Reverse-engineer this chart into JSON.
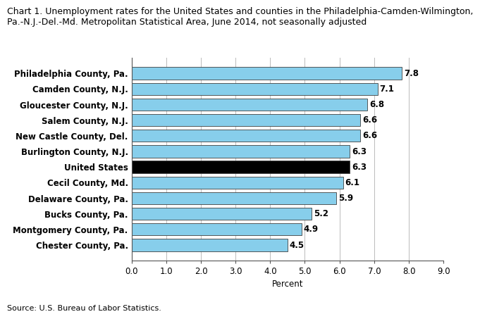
{
  "title_line1": "Chart 1. Unemployment rates for the United States and counties in the Philadelphia-Camden-Wilmington,",
  "title_line2": "Pa.-N.J.-Del.-Md. Metropolitan Statistical Area, June 2014, not seasonally adjusted",
  "source": "Source: U.S. Bureau of Labor Statistics.",
  "xlabel": "Percent",
  "categories": [
    "Chester County, Pa.",
    "Montgomery County, Pa.",
    "Bucks County, Pa.",
    "Delaware County, Pa.",
    "Cecil County, Md.",
    "United States",
    "Burlington County, N.J.",
    "New Castle County, Del.",
    "Salem County, N.J.",
    "Gloucester County, N.J.",
    "Camden County, N.J.",
    "Philadelphia County, Pa."
  ],
  "values": [
    4.5,
    4.9,
    5.2,
    5.9,
    6.1,
    6.3,
    6.3,
    6.6,
    6.6,
    6.8,
    7.1,
    7.8
  ],
  "bar_colors": [
    "#87CEEB",
    "#87CEEB",
    "#87CEEB",
    "#87CEEB",
    "#87CEEB",
    "#000000",
    "#87CEEB",
    "#87CEEB",
    "#87CEEB",
    "#87CEEB",
    "#87CEEB",
    "#87CEEB"
  ],
  "xlim": [
    0.0,
    9.0
  ],
  "xticks": [
    0.0,
    1.0,
    2.0,
    3.0,
    4.0,
    5.0,
    6.0,
    7.0,
    8.0,
    9.0
  ],
  "xtick_labels": [
    "0.0",
    "1.0",
    "2.0",
    "3.0",
    "4.0",
    "5.0",
    "6.0",
    "7.0",
    "8.0",
    "9.0"
  ],
  "label_fontsize": 8.5,
  "value_fontsize": 8.5,
  "title_fontsize": 9.0,
  "bar_edge_color": "#404040",
  "grid_color": "#bbbbbb",
  "background_color": "#ffffff"
}
